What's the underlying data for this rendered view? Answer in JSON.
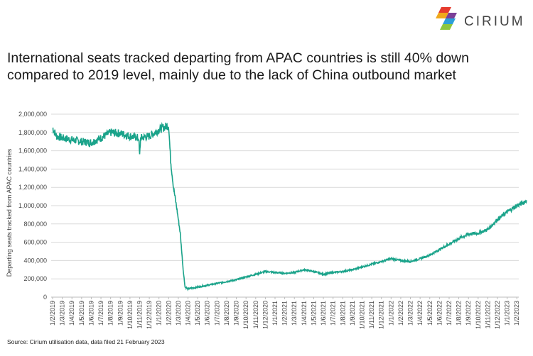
{
  "brand": {
    "name": "CIRIUM"
  },
  "title_lines": [
    "International seats tracked departing from APAC countries is still 40% down",
    "compared to 2019 level, mainly due to the lack of China outbound market"
  ],
  "source": "Source: Cirium utilisation data, data filed 21 February 2023",
  "colors": {
    "line": "#1aa38a",
    "grid": "#d9d9d9"
  },
  "chart_data": {
    "type": "line",
    "title": "International seats tracked departing from APAC countries is still 40% down compared to 2019 level, mainly due to the lack of China outbound market",
    "xlabel": "",
    "ylabel": "Departing seats tracked from APAC countries",
    "ylim": [
      0,
      2000000
    ],
    "yticks": [
      "0",
      "200,000",
      "400,000",
      "600,000",
      "800,000",
      "1,000,000",
      "1,200,000",
      "1,400,000",
      "1,600,000",
      "1,800,000",
      "2,000,000"
    ],
    "categories": [
      "1/2/2019",
      "1/3/2019",
      "1/4/2019",
      "1/5/2019",
      "1/6/2019",
      "1/7/2019",
      "1/8/2019",
      "1/9/2019",
      "1/10/2019",
      "1/11/2019",
      "1/12/2019",
      "1/1/2020",
      "1/2/2020",
      "1/3/2020",
      "1/4/2020",
      "1/5/2020",
      "1/6/2020",
      "1/7/2020",
      "1/8/2020",
      "1/9/2020",
      "1/10/2020",
      "1/11/2020",
      "1/12/2020",
      "1/1/2021",
      "1/2/2021",
      "1/3/2021",
      "1/4/2021",
      "1/5/2021",
      "1/6/2021",
      "1/7/2021",
      "1/8/2021",
      "1/9/2021",
      "1/10/2021",
      "1/11/2021",
      "1/12/2021",
      "1/1/2022",
      "1/2/2022",
      "1/3/2022",
      "1/4/2022",
      "1/5/2022",
      "1/6/2022",
      "1/7/2022",
      "1/8/2022",
      "1/9/2022",
      "1/10/2022",
      "1/11/2022",
      "1/12/2022",
      "1/1/2023",
      "1/2/2023"
    ],
    "series": [
      {
        "name": "Departing seats",
        "points": [
          [
            0,
            1850000
          ],
          [
            0.4,
            1760000
          ],
          [
            1,
            1740000
          ],
          [
            2,
            1720000
          ],
          [
            3,
            1700000
          ],
          [
            4,
            1690000
          ],
          [
            5,
            1740000
          ],
          [
            6,
            1800000
          ],
          [
            7,
            1790000
          ],
          [
            8,
            1760000
          ],
          [
            8.9,
            1740000
          ],
          [
            9.0,
            1540000
          ],
          [
            9.1,
            1740000
          ],
          [
            10,
            1760000
          ],
          [
            11,
            1830000
          ],
          [
            11.8,
            1870000
          ],
          [
            12.0,
            1880000
          ],
          [
            12.2,
            1500000
          ],
          [
            12.5,
            1200000
          ],
          [
            12.8,
            1000000
          ],
          [
            13.2,
            700000
          ],
          [
            13.5,
            300000
          ],
          [
            13.7,
            110000
          ],
          [
            14,
            90000
          ],
          [
            15,
            110000
          ],
          [
            16,
            130000
          ],
          [
            17,
            150000
          ],
          [
            18,
            170000
          ],
          [
            19,
            190000
          ],
          [
            20,
            220000
          ],
          [
            21,
            250000
          ],
          [
            22,
            280000
          ],
          [
            23,
            270000
          ],
          [
            24,
            260000
          ],
          [
            25,
            270000
          ],
          [
            26,
            300000
          ],
          [
            27,
            280000
          ],
          [
            28,
            250000
          ],
          [
            29,
            270000
          ],
          [
            30,
            280000
          ],
          [
            31,
            300000
          ],
          [
            32,
            330000
          ],
          [
            33,
            360000
          ],
          [
            34,
            390000
          ],
          [
            35,
            420000
          ],
          [
            36,
            400000
          ],
          [
            37,
            390000
          ],
          [
            38,
            420000
          ],
          [
            39,
            460000
          ],
          [
            40,
            520000
          ],
          [
            41,
            580000
          ],
          [
            42,
            640000
          ],
          [
            43,
            690000
          ],
          [
            44,
            700000
          ],
          [
            45,
            740000
          ],
          [
            46,
            850000
          ],
          [
            47,
            930000
          ],
          [
            48,
            1000000
          ],
          [
            48.8,
            1040000
          ],
          [
            49.0,
            1060000
          ]
        ]
      }
    ]
  }
}
